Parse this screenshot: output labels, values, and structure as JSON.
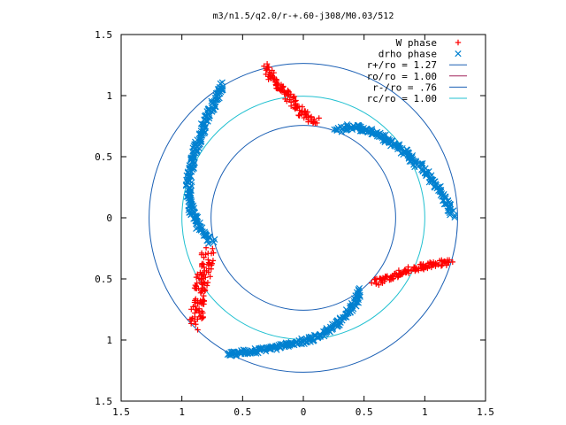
{
  "chart_data": {
    "type": "scatter",
    "title": "m3/n1.5/q2.0/r-+.60-j308/M0.03/512",
    "xlim": [
      -1.5,
      1.5
    ],
    "ylim": [
      -1.5,
      1.5
    ],
    "x_ticks": [
      -1.5,
      -1,
      -0.5,
      0,
      0.5,
      1,
      1.5
    ],
    "y_ticks": [
      -1.5,
      -1,
      -0.5,
      0,
      0.5,
      1,
      1.5
    ],
    "x_tick_labels": [
      "1.5",
      "1",
      "0.5",
      "0",
      "0.5",
      "1",
      "1.5"
    ],
    "y_tick_labels": [
      "1.5",
      "1",
      "0.5",
      "0",
      "0.5",
      "1",
      "1.5"
    ],
    "grid": false,
    "legend_position": "top-right",
    "legend": [
      {
        "label": "W phase",
        "color": "#ff0000",
        "marker": "plus"
      },
      {
        "label": "drho phase",
        "color": "#0080d0",
        "marker": "x"
      },
      {
        "label": "r+/ro = 1.27",
        "color": "#1a5fb4",
        "marker": "line"
      },
      {
        "label": "ro/ro = 1.00",
        "color": "#a0225a",
        "marker": "line"
      },
      {
        "label": "r-/ro = .76",
        "color": "#1a5fb4",
        "marker": "line"
      },
      {
        "label": "rc/ro = 1.00",
        "color": "#20c0d0",
        "marker": "line"
      }
    ],
    "circles": [
      {
        "name": "r+/ro",
        "r": 1.27,
        "color": "#1a5fb4"
      },
      {
        "name": "r-/ro",
        "r": 0.76,
        "color": "#1a5fb4"
      },
      {
        "name": "rc/ro",
        "r": 1.0,
        "color": "#20c0d0"
      }
    ],
    "series": [
      {
        "name": "W phase",
        "color": "#ff0000",
        "marker": "plus",
        "arms": [
          {
            "points": [
              [
                -0.31,
                1.23
              ],
              [
                -0.26,
                1.14
              ],
              [
                -0.21,
                1.09
              ],
              [
                -0.16,
                1.04
              ],
              [
                -0.12,
                0.99
              ],
              [
                -0.08,
                0.94
              ],
              [
                -0.03,
                0.88
              ],
              [
                0.02,
                0.84
              ],
              [
                0.07,
                0.8
              ],
              [
                0.11,
                0.78
              ]
            ],
            "width": 0.035
          },
          {
            "points": [
              [
                0.58,
                -0.53
              ],
              [
                0.66,
                -0.51
              ],
              [
                0.74,
                -0.48
              ],
              [
                0.82,
                -0.45
              ],
              [
                0.9,
                -0.42
              ],
              [
                0.98,
                -0.4
              ],
              [
                1.06,
                -0.38
              ],
              [
                1.14,
                -0.37
              ],
              [
                1.22,
                -0.36
              ]
            ],
            "width": 0.025
          },
          {
            "points": [
              [
                -0.79,
                -0.28
              ],
              [
                -0.8,
                -0.35
              ],
              [
                -0.81,
                -0.42
              ],
              [
                -0.83,
                -0.5
              ],
              [
                -0.85,
                -0.58
              ],
              [
                -0.86,
                -0.66
              ],
              [
                -0.87,
                -0.74
              ],
              [
                -0.88,
                -0.8
              ],
              [
                -0.9,
                -0.88
              ]
            ],
            "width": 0.055
          }
        ]
      },
      {
        "name": "drho phase",
        "color": "#0080d0",
        "marker": "x",
        "arms": [
          {
            "points": [
              [
                0.27,
                0.72
              ],
              [
                0.4,
                0.75
              ],
              [
                0.52,
                0.72
              ],
              [
                0.65,
                0.67
              ],
              [
                0.76,
                0.6
              ],
              [
                0.87,
                0.51
              ],
              [
                0.97,
                0.41
              ],
              [
                1.06,
                0.31
              ],
              [
                1.13,
                0.21
              ],
              [
                1.19,
                0.11
              ],
              [
                1.24,
                0.02
              ]
            ],
            "width": 0.025
          },
          {
            "points": [
              [
                -0.67,
                1.09
              ],
              [
                -0.72,
                0.98
              ],
              [
                -0.77,
                0.87
              ],
              [
                -0.82,
                0.75
              ],
              [
                -0.86,
                0.63
              ],
              [
                -0.91,
                0.48
              ],
              [
                -0.94,
                0.34
              ],
              [
                -0.95,
                0.21
              ],
              [
                -0.93,
                0.09
              ],
              [
                -0.89,
                -0.02
              ],
              [
                -0.82,
                -0.12
              ],
              [
                -0.75,
                -0.2
              ]
            ],
            "width": 0.025
          },
          {
            "points": [
              [
                0.47,
                -0.59
              ],
              [
                0.44,
                -0.67
              ],
              [
                0.38,
                -0.76
              ],
              [
                0.3,
                -0.85
              ],
              [
                0.21,
                -0.92
              ],
              [
                0.1,
                -0.98
              ],
              [
                -0.03,
                -1.02
              ],
              [
                -0.18,
                -1.05
              ],
              [
                -0.33,
                -1.08
              ],
              [
                -0.48,
                -1.1
              ],
              [
                -0.62,
                -1.12
              ]
            ],
            "width": 0.022
          }
        ]
      }
    ]
  }
}
